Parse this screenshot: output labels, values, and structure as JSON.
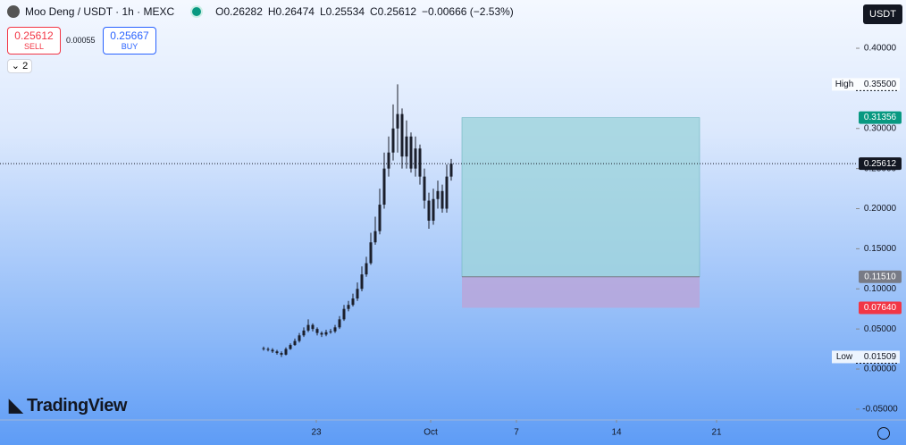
{
  "header": {
    "symbol": "Moo Deng / USDT · 1h · MEXC",
    "ohlc": [
      "O0.26282",
      "H0.26474",
      "L0.25534",
      "C0.25612",
      "−0.00666 (−2.53%)"
    ],
    "currency": "USDT",
    "indicators": "2"
  },
  "trade": {
    "sell_price": "0.25612",
    "sell": "SELL",
    "spread": "0.00055",
    "buy_price": "0.25667",
    "buy": "BUY"
  },
  "logo": "TradingView",
  "chart_data": {
    "type": "candlestick",
    "color": "#1b1f2b",
    "x": [
      19.3125,
      19.625,
      19.9375,
      20.25,
      20.5625,
      20.875,
      21.1875,
      21.5,
      21.8125,
      22.125,
      22.4375,
      22.75,
      23.0625,
      23.375,
      23.6875,
      24,
      24.3125,
      24.625,
      24.9375,
      25.25,
      25.5625,
      25.875,
      26.1875,
      26.5,
      26.8125,
      27.125,
      27.4375,
      27.75,
      28.0625,
      28.375,
      28.6875,
      29,
      29.3125,
      29.625,
      29.9375,
      30.25,
      30.5625,
      30.875,
      31.1875,
      31.5,
      31.8125,
      32.125,
      32.4375
    ],
    "open": [
      0.026,
      0.025,
      0.024,
      0.022,
      0.02,
      0.018,
      0.025,
      0.03,
      0.035,
      0.042,
      0.048,
      0.055,
      0.05,
      0.045,
      0.043,
      0.046,
      0.047,
      0.052,
      0.062,
      0.075,
      0.08,
      0.088,
      0.1,
      0.118,
      0.132,
      0.158,
      0.172,
      0.205,
      0.25,
      0.27,
      0.3,
      0.318,
      0.265,
      0.29,
      0.25,
      0.275,
      0.24,
      0.21,
      0.185,
      0.212,
      0.222,
      0.2,
      0.24
    ],
    "high": [
      0.028,
      0.027,
      0.026,
      0.024,
      0.022,
      0.027,
      0.032,
      0.038,
      0.045,
      0.052,
      0.062,
      0.057,
      0.052,
      0.047,
      0.049,
      0.05,
      0.055,
      0.066,
      0.08,
      0.085,
      0.094,
      0.108,
      0.128,
      0.14,
      0.17,
      0.19,
      0.225,
      0.27,
      0.29,
      0.33,
      0.355,
      0.325,
      0.31,
      0.295,
      0.29,
      0.28,
      0.25,
      0.22,
      0.225,
      0.235,
      0.23,
      0.255,
      0.262
    ],
    "low": [
      0.023,
      0.022,
      0.02,
      0.018,
      0.0151,
      0.017,
      0.024,
      0.029,
      0.033,
      0.04,
      0.046,
      0.047,
      0.042,
      0.04,
      0.041,
      0.044,
      0.045,
      0.05,
      0.06,
      0.072,
      0.078,
      0.085,
      0.097,
      0.115,
      0.13,
      0.155,
      0.168,
      0.2,
      0.24,
      0.26,
      0.27,
      0.25,
      0.25,
      0.245,
      0.24,
      0.23,
      0.2,
      0.175,
      0.18,
      0.2,
      0.195,
      0.195,
      0.235
    ],
    "close": [
      0.025,
      0.024,
      0.022,
      0.02,
      0.018,
      0.025,
      0.03,
      0.035,
      0.042,
      0.048,
      0.055,
      0.05,
      0.045,
      0.043,
      0.046,
      0.047,
      0.052,
      0.062,
      0.075,
      0.08,
      0.088,
      0.1,
      0.118,
      0.132,
      0.158,
      0.172,
      0.205,
      0.25,
      0.27,
      0.3,
      0.318,
      0.265,
      0.29,
      0.25,
      0.275,
      0.24,
      0.21,
      0.185,
      0.212,
      0.222,
      0.2,
      0.24,
      0.25612
    ],
    "xlim": [
      0.875,
      60.75
    ],
    "xticks": [
      {
        "value": 23,
        "label": "23"
      },
      {
        "value": 31,
        "label": "Oct"
      },
      {
        "value": 37,
        "label": "7"
      },
      {
        "value": 44,
        "label": "14"
      },
      {
        "value": 51,
        "label": "21"
      }
    ],
    "ylim": [
      -0.0635,
      0.4602
    ],
    "yticks": [
      {
        "value": -0.05,
        "label": "-0.05000"
      },
      {
        "value": 0,
        "label": "0.00000"
      },
      {
        "value": 0.05,
        "label": "0.05000"
      },
      {
        "value": 0.1,
        "label": "0.10000"
      },
      {
        "value": 0.15,
        "label": "0.15000"
      },
      {
        "value": 0.2,
        "label": "0.20000"
      },
      {
        "value": 0.25,
        "label": "0.25000"
      },
      {
        "value": 0.3,
        "label": "0.30000"
      },
      {
        "value": 0.4,
        "label": "0.40000"
      }
    ],
    "current": {
      "value": 0.25612,
      "value_label": "0.25612",
      "color": "#131722"
    },
    "high_mark": {
      "label": "High",
      "value": 0.355,
      "value_label": "0.35500"
    },
    "low_mark": {
      "label": "Low",
      "value": 0.01509,
      "value_label": "0.01509"
    },
    "position": {
      "x": [
        33.1875,
        49.8125
      ],
      "target": 0.31356,
      "target_label": "0.31356",
      "target_color": "#089981",
      "entry": 0.1151,
      "entry_label": "0.11510",
      "entry_color": "#787b86",
      "stop": 0.0764,
      "stop_label": "0.07640",
      "stop_color": "#f23645",
      "profit_fill": "#9ed3dc",
      "loss_fill": "#b9a6da"
    }
  }
}
